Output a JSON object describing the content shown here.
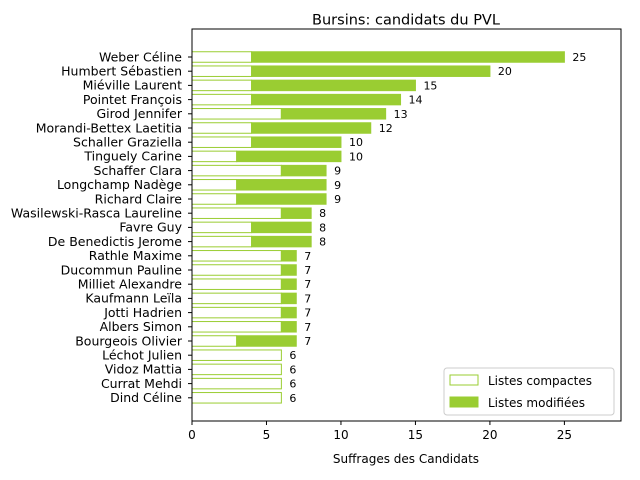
{
  "chart_data": {
    "type": "bar",
    "orientation": "horizontal",
    "stacked": true,
    "title": "Bursins: candidats du PVL",
    "xlabel": "Suffrages des Candidats",
    "ylabel": "",
    "xlim": [
      0,
      28.8
    ],
    "xticks": [
      0,
      5,
      10,
      15,
      20,
      25
    ],
    "grid": false,
    "legend_position": "lower-right",
    "categories": [
      "Weber Céline",
      "Humbert Sébastien",
      "Miéville Laurent",
      "Pointet François",
      "Girod Jennifer",
      "Morandi-Bettex Laetitia",
      "Schaller Graziella",
      "Tinguely Carine",
      "Schaffer Clara",
      "Longchamp Nadège",
      "Richard Claire",
      "Wasilewski-Rasca Laureline",
      "Favre Guy",
      "De Benedictis Jerome",
      "Rathle Maxime",
      "Ducommun Pauline",
      "Milliet Alexandre",
      "Kaufmann Leïla",
      "Jotti Hadrien",
      "Albers Simon",
      "Bourgeois Olivier",
      "Léchot Julien",
      "Vidoz Mattia",
      "Currat Mehdi",
      "Dind Céline"
    ],
    "series": [
      {
        "name": "Listes compactes",
        "values": [
          4,
          4,
          4,
          4,
          6,
          4,
          4,
          3,
          6,
          3,
          3,
          6,
          4,
          4,
          6,
          6,
          6,
          6,
          6,
          6,
          3,
          6,
          6,
          6,
          6
        ]
      },
      {
        "name": "Listes modifiées",
        "values": [
          21,
          16,
          11,
          10,
          7,
          8,
          6,
          7,
          3,
          6,
          6,
          2,
          4,
          4,
          1,
          1,
          1,
          1,
          1,
          1,
          4,
          0,
          0,
          0,
          0
        ]
      }
    ],
    "totals": [
      25,
      20,
      15,
      14,
      13,
      12,
      10,
      10,
      9,
      9,
      9,
      8,
      8,
      8,
      7,
      7,
      7,
      7,
      7,
      7,
      7,
      6,
      6,
      6,
      6
    ],
    "colors": {
      "compactes_edge": "#9acd32",
      "compactes_fill": "#ffffff",
      "modifiees": "#9acd32"
    }
  }
}
